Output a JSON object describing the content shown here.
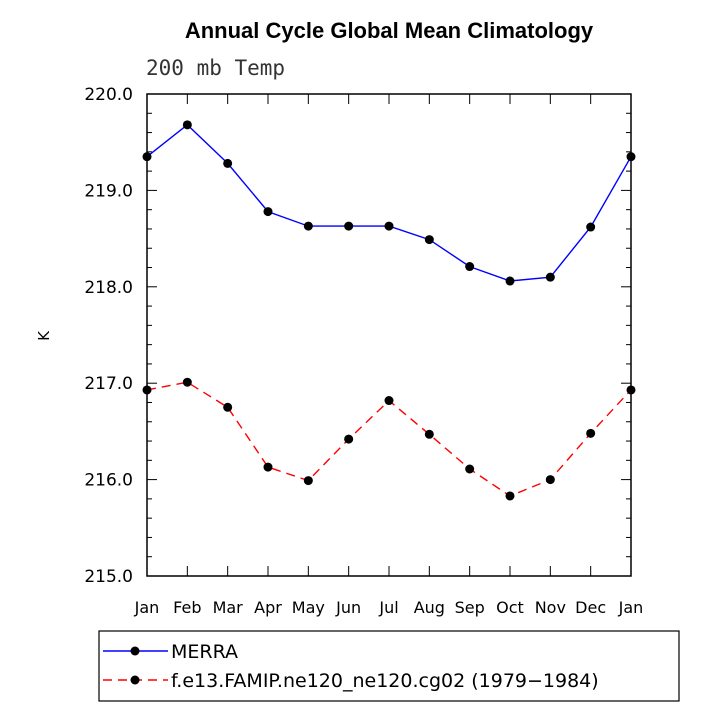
{
  "chart_data": {
    "type": "line",
    "title": "Annual Cycle Global Mean Climatology",
    "subtitle": "200 mb Temp",
    "ylabel": "K",
    "xlabel": "",
    "ylim": [
      215.0,
      220.0
    ],
    "yticks": [
      "215.0",
      "216.0",
      "217.0",
      "218.0",
      "219.0",
      "220.0"
    ],
    "categories": [
      "Jan",
      "Feb",
      "Mar",
      "Apr",
      "May",
      "Jun",
      "Jul",
      "Aug",
      "Sep",
      "Oct",
      "Nov",
      "Dec",
      "Jan"
    ],
    "legend_position": "bottom",
    "series": [
      {
        "name": "MERRA",
        "color": "#0000ff",
        "dash": "solid",
        "values": [
          219.35,
          219.68,
          219.28,
          218.78,
          218.63,
          218.63,
          218.63,
          218.49,
          218.21,
          218.06,
          218.1,
          218.62,
          219.35
        ]
      },
      {
        "name": "f.e13.FAMIP.ne120_ne120.cg02 (1979−1984)",
        "color": "#ff0000",
        "dash": "dashed",
        "values": [
          216.93,
          217.01,
          216.75,
          216.13,
          215.99,
          216.42,
          216.82,
          216.47,
          216.11,
          215.83,
          216.0,
          216.48,
          216.93
        ]
      }
    ]
  }
}
